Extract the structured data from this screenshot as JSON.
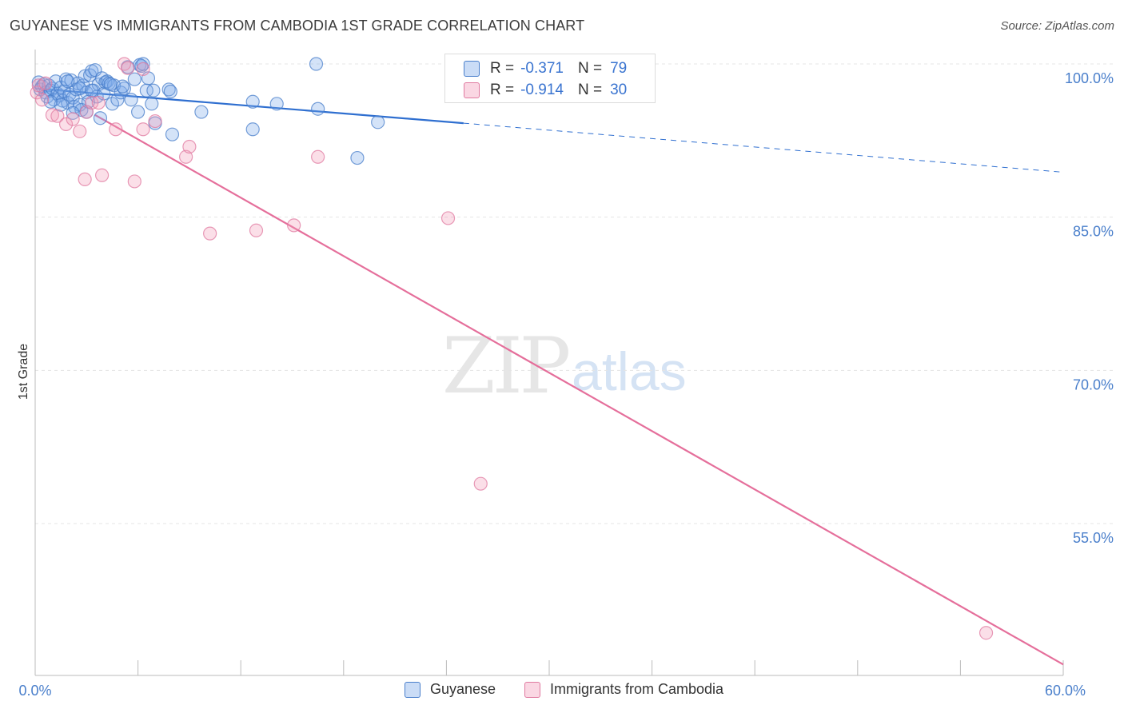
{
  "title": "GUYANESE VS IMMIGRANTS FROM CAMBODIA 1ST GRADE CORRELATION CHART",
  "source": "Source: ZipAtlas.com",
  "watermark": {
    "zip": "ZIP",
    "atlas": "atlas"
  },
  "legend_stats": [
    {
      "r_label": "R =",
      "r_value": "-0.371",
      "n_label": "N =",
      "n_value": "79",
      "color": "#7aa7e8"
    },
    {
      "r_label": "R =",
      "r_value": "-0.914",
      "n_label": "N =",
      "n_value": "30",
      "color": "#f29ab8"
    }
  ],
  "legend_bottom": [
    {
      "label": "Guyanese",
      "color": "#7aa7e8"
    },
    {
      "label": "Immigrants from Cambodia",
      "color": "#f29ab8"
    }
  ],
  "chart_data": {
    "type": "scatter",
    "title": "GUYANESE VS IMMIGRANTS FROM CAMBODIA 1ST GRADE CORRELATION CHART",
    "xlabel": "",
    "ylabel": "1st Grade",
    "xlim": [
      0,
      60
    ],
    "ylim": [
      39.5,
      101
    ],
    "x_tick_labels": [
      {
        "value": 0,
        "label": "0.0%"
      },
      {
        "value": 60,
        "label": "60.0%"
      }
    ],
    "y_tick_labels": [
      {
        "value": 100,
        "label": "100.0%"
      },
      {
        "value": 85,
        "label": "85.0%"
      },
      {
        "value": 70,
        "label": "70.0%"
      },
      {
        "value": 55,
        "label": "55.0%"
      }
    ],
    "x_minor_ticks": [
      0,
      6,
      12,
      18,
      24,
      30,
      36,
      42,
      48,
      54,
      60
    ],
    "series": [
      {
        "name": "Guyanese",
        "color": "#7aa7e8",
        "stroke": "#4a7fcb",
        "trend": {
          "x0": 0,
          "y0": 97.6,
          "x1": 25,
          "y1": 94.2,
          "dash_x1": 60,
          "dash_y1": 89.4,
          "color": "#2f6fd0"
        },
        "points": [
          [
            0.2,
            98.2
          ],
          [
            0.3,
            97.5
          ],
          [
            0.4,
            97.8
          ],
          [
            0.5,
            98.0
          ],
          [
            0.6,
            97.2
          ],
          [
            0.7,
            96.8
          ],
          [
            0.8,
            97.9
          ],
          [
            0.9,
            97.4
          ],
          [
            1.0,
            97.6
          ],
          [
            1.1,
            96.5
          ],
          [
            1.2,
            98.3
          ],
          [
            1.3,
            97.1
          ],
          [
            1.4,
            96.9
          ],
          [
            1.5,
            97.7
          ],
          [
            1.6,
            96.4
          ],
          [
            1.7,
            97.3
          ],
          [
            1.8,
            98.5
          ],
          [
            1.9,
            96.2
          ],
          [
            2.0,
            97.0
          ],
          [
            2.1,
            98.4
          ],
          [
            2.2,
            96.7
          ],
          [
            2.3,
            95.8
          ],
          [
            2.4,
            97.5
          ],
          [
            2.5,
            98.1
          ],
          [
            2.6,
            96.0
          ],
          [
            2.7,
            95.5
          ],
          [
            2.8,
            97.9
          ],
          [
            2.9,
            98.8
          ],
          [
            3.0,
            97.2
          ],
          [
            3.1,
            96.3
          ],
          [
            3.2,
            98.9
          ],
          [
            3.3,
            99.3
          ],
          [
            3.4,
            97.4
          ],
          [
            3.5,
            99.4
          ],
          [
            3.6,
            96.8
          ],
          [
            3.7,
            98.0
          ],
          [
            3.8,
            94.7
          ],
          [
            3.9,
            98.6
          ],
          [
            4.0,
            97.1
          ],
          [
            4.1,
            98.2
          ],
          [
            4.2,
            98.3
          ],
          [
            4.3,
            98.1
          ],
          [
            4.5,
            96.1
          ],
          [
            4.6,
            97.9
          ],
          [
            4.8,
            96.5
          ],
          [
            5.0,
            97.2
          ],
          [
            5.2,
            97.6
          ],
          [
            5.4,
            99.7
          ],
          [
            5.6,
            96.5
          ],
          [
            5.8,
            98.5
          ],
          [
            6.0,
            95.3
          ],
          [
            6.1,
            99.9
          ],
          [
            6.2,
            99.8
          ],
          [
            6.3,
            100.0
          ],
          [
            6.5,
            97.4
          ],
          [
            6.8,
            96.1
          ],
          [
            6.9,
            97.4
          ],
          [
            7.0,
            94.2
          ],
          [
            7.8,
            97.5
          ],
          [
            7.9,
            97.3
          ],
          [
            8.0,
            93.1
          ],
          [
            9.7,
            95.3
          ],
          [
            12.7,
            96.3
          ],
          [
            12.7,
            93.6
          ],
          [
            14.1,
            96.1
          ],
          [
            16.4,
            100.0
          ],
          [
            16.5,
            95.6
          ],
          [
            18.8,
            90.8
          ],
          [
            20.0,
            94.3
          ],
          [
            1.5,
            96.0
          ],
          [
            2.2,
            95.2
          ],
          [
            0.9,
            96.3
          ],
          [
            3.0,
            95.3
          ],
          [
            4.4,
            98.0
          ],
          [
            2.6,
            97.6
          ],
          [
            1.9,
            98.3
          ],
          [
            5.1,
            97.8
          ],
          [
            6.6,
            98.6
          ],
          [
            3.3,
            97.4
          ]
        ]
      },
      {
        "name": "Immigrants from Cambodia",
        "color": "#f29ab8",
        "stroke": "#e07aa0",
        "trend": {
          "x0": 3.5,
          "y0": 95.0,
          "x1": 60,
          "y1": 41.2,
          "color": "#e56f9b"
        },
        "points": [
          [
            0.1,
            97.2
          ],
          [
            0.2,
            97.9
          ],
          [
            0.4,
            96.5
          ],
          [
            0.6,
            98.1
          ],
          [
            1.0,
            95.0
          ],
          [
            1.3,
            94.9
          ],
          [
            1.8,
            94.1
          ],
          [
            2.2,
            94.6
          ],
          [
            2.6,
            93.4
          ],
          [
            3.0,
            95.3
          ],
          [
            3.3,
            96.2
          ],
          [
            3.7,
            96.2
          ],
          [
            4.7,
            93.6
          ],
          [
            5.2,
            100.0
          ],
          [
            5.4,
            99.6
          ],
          [
            6.3,
            99.5
          ],
          [
            6.3,
            93.6
          ],
          [
            7.0,
            94.4
          ],
          [
            2.9,
            88.7
          ],
          [
            3.9,
            89.1
          ],
          [
            5.8,
            88.5
          ],
          [
            8.8,
            90.9
          ],
          [
            9.0,
            91.9
          ],
          [
            10.2,
            83.4
          ],
          [
            12.9,
            83.7
          ],
          [
            15.1,
            84.2
          ],
          [
            16.5,
            90.9
          ],
          [
            24.1,
            84.9
          ],
          [
            26.0,
            58.9
          ],
          [
            55.5,
            44.3
          ]
        ]
      }
    ]
  }
}
